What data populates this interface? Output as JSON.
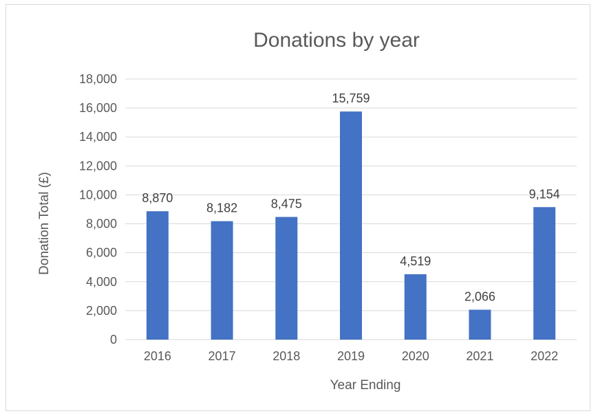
{
  "chart_data": {
    "type": "bar",
    "title": "Donations by year",
    "xlabel": "Year Ending",
    "ylabel": "Donation Total (£)",
    "categories": [
      "2016",
      "2017",
      "2018",
      "2019",
      "2020",
      "2021",
      "2022"
    ],
    "values": [
      8870,
      8182,
      8475,
      15759,
      4519,
      2066,
      9154
    ],
    "value_labels": [
      "8,870",
      "8,182",
      "8,475",
      "15,759",
      "4,519",
      "2,066",
      "9,154"
    ],
    "ylim": [
      0,
      18000
    ],
    "yticks": [
      0,
      2000,
      4000,
      6000,
      8000,
      10000,
      12000,
      14000,
      16000,
      18000
    ],
    "ytick_labels": [
      "0",
      "2,000",
      "4,000",
      "6,000",
      "8,000",
      "10,000",
      "12,000",
      "14,000",
      "16,000",
      "18,000"
    ],
    "grid": true,
    "legend": "none",
    "bar_color": "#4472c4",
    "grid_color": "#d9d9d9"
  }
}
